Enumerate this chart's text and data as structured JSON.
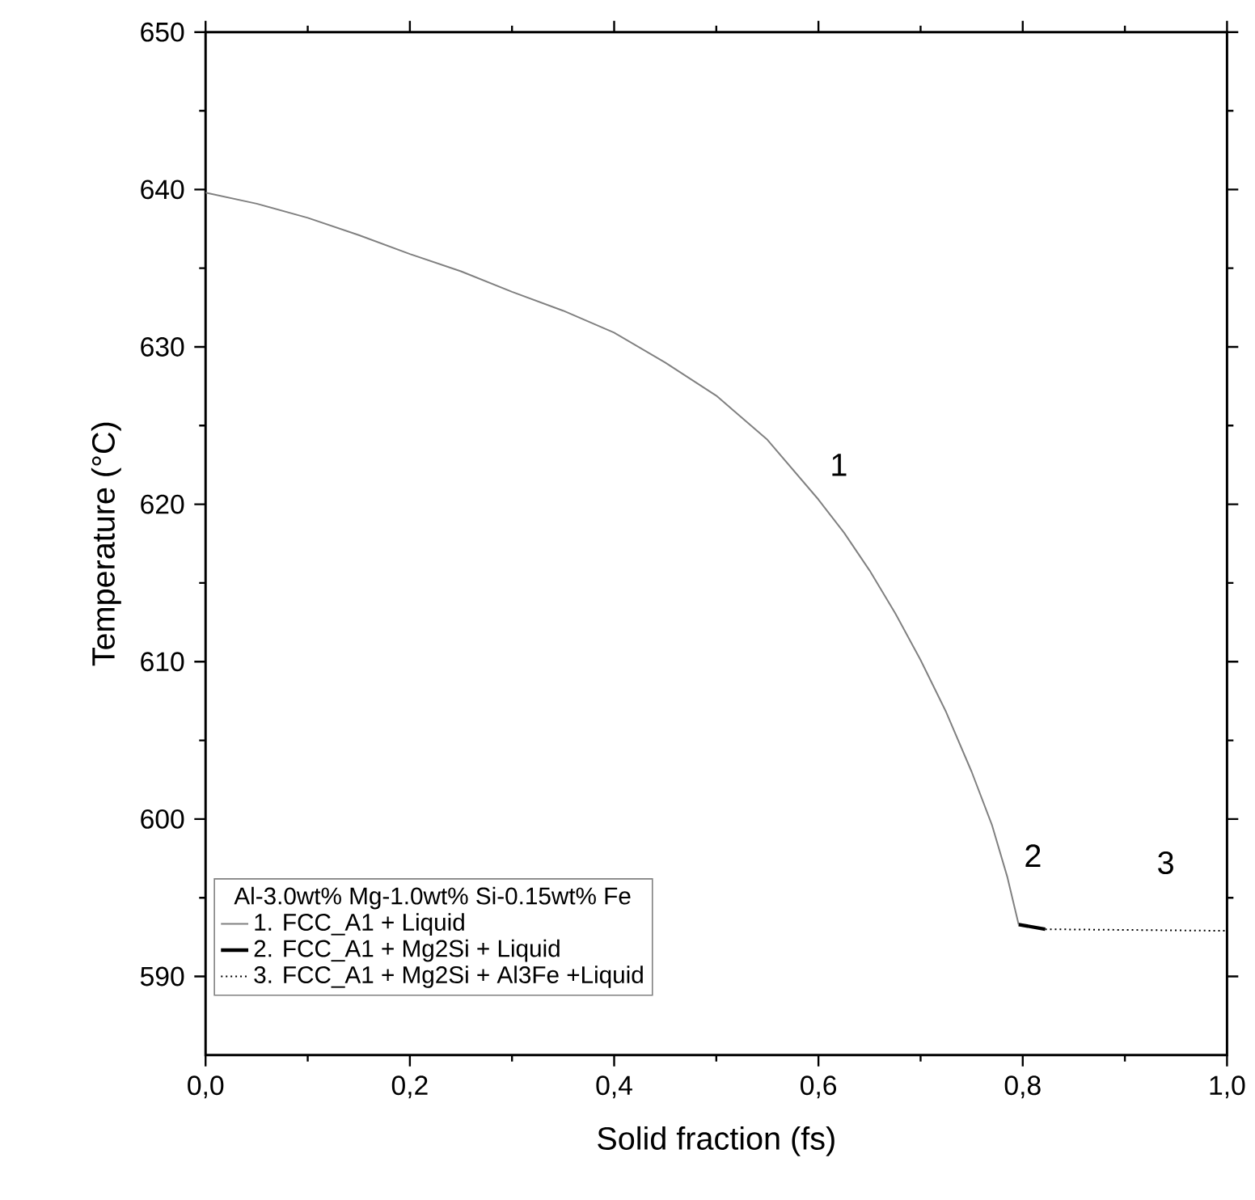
{
  "chart_data": {
    "type": "line",
    "xlabel": "Solid fraction (fs)",
    "ylabel": "Temperature (°C)",
    "legend_title": "Al-3.0wt% Mg-1.0wt% Si-0.15wt% Fe",
    "legend": "bottom left",
    "xlim": [
      0,
      1
    ],
    "ylim": [
      585,
      650
    ],
    "xticks": [
      {
        "value": 0,
        "label": "0,0"
      },
      {
        "value": 0.2,
        "label": "0,2"
      },
      {
        "value": 0.4,
        "label": "0,4"
      },
      {
        "value": 0.6,
        "label": "0,6"
      },
      {
        "value": 0.8,
        "label": "0,8"
      },
      {
        "value": 1,
        "label": "1,0"
      }
    ],
    "yticks": [
      590,
      600,
      610,
      620,
      630,
      640,
      650
    ],
    "series": [
      {
        "name": "1. FCC_A1 + Liquid",
        "color": "#808080",
        "line_style": "solid",
        "x": [
          0,
          0.05,
          0.1,
          0.15,
          0.2,
          0.25,
          0.3,
          0.35,
          0.4,
          0.45,
          0.5,
          0.55,
          0.6,
          0.625,
          0.65,
          0.675,
          0.7,
          0.725,
          0.75,
          0.77,
          0.785,
          0.796
        ],
        "values": [
          639.8,
          639.1,
          638.2,
          637.1,
          635.9,
          634.8,
          633.5,
          632.3,
          630.9,
          629,
          626.9,
          624.1,
          620.3,
          618.2,
          615.8,
          613.1,
          610.1,
          606.8,
          603,
          599.6,
          596.3,
          593.3
        ]
      },
      {
        "name": "2. FCC_A1 + Mg2Si + Liquid",
        "color": "#000000",
        "line_style": "solid",
        "x": [
          0.796,
          0.822
        ],
        "values": [
          593.3,
          593.0
        ]
      },
      {
        "name": "3. FCC_A1 + Mg2Si + Al3Fe +Liquid",
        "color": "#000000",
        "line_style": "dotted",
        "x": [
          0.822,
          1.0
        ],
        "values": [
          593.0,
          592.9
        ]
      }
    ],
    "annotations": [
      "1",
      "2",
      "3"
    ]
  }
}
